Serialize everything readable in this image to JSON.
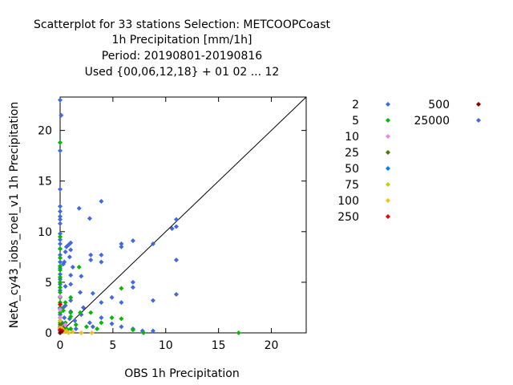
{
  "chart_data": {
    "type": "scatter",
    "title_lines": [
      "Scatterplot for   33 stations Selection: METCOOPCoast",
      "1h Precipitation [mm/1h]",
      "Period: 20190801-20190816",
      "Used {00,06,12,18} + 01 02 ... 12"
    ],
    "xlabel": "OBS 1h Precipitation",
    "ylabel": "NetA_cy43_iobs_roel_v1 1h Precipitation",
    "xlim": [
      0,
      23.3
    ],
    "ylim": [
      0,
      23.3
    ],
    "xticks": [
      "0",
      "5",
      "10",
      "15",
      "20"
    ],
    "yticks": [
      "0",
      "5",
      "10",
      "15",
      "20"
    ],
    "diagonal": true,
    "grid": false,
    "legend_position": "right",
    "legend": [
      {
        "label": "2",
        "color": "#4169e1"
      },
      {
        "label": "5",
        "color": "#00bb00"
      },
      {
        "label": "10",
        "color": "#ee82ee"
      },
      {
        "label": "25",
        "color": "#4a7a00"
      },
      {
        "label": "50",
        "color": "#0080ff"
      },
      {
        "label": "75",
        "color": "#cccc00"
      },
      {
        "label": "100",
        "color": "#f0c020"
      },
      {
        "label": "250",
        "color": "#ee0000"
      },
      {
        "label": "500",
        "color": "#8b0000"
      },
      {
        "label": "25000",
        "color": "#4169e1"
      }
    ],
    "series": [
      {
        "color": "#4169e1",
        "points": [
          [
            0,
            23.0
          ],
          [
            0.1,
            21.5
          ],
          [
            0,
            18.0
          ],
          [
            0,
            14.2
          ],
          [
            0,
            12.5
          ],
          [
            0,
            12.0
          ],
          [
            0,
            11.5
          ],
          [
            0,
            11.2
          ],
          [
            0,
            10.8
          ],
          [
            0,
            9.8
          ],
          [
            0,
            9.2
          ],
          [
            0,
            8.8
          ],
          [
            0,
            8.3
          ],
          [
            0,
            7.7
          ],
          [
            0,
            7.0
          ],
          [
            0,
            6.4
          ],
          [
            0,
            5.8
          ],
          [
            0,
            5.3
          ],
          [
            0,
            4.8
          ],
          [
            0,
            4.2
          ],
          [
            0,
            3.6
          ],
          [
            0,
            3.0
          ],
          [
            0,
            2.4
          ],
          [
            0,
            1.8
          ],
          [
            0,
            1.2
          ],
          [
            0,
            0.6
          ],
          [
            0,
            0.2
          ],
          [
            1.8,
            12.3
          ],
          [
            2.8,
            11.3
          ],
          [
            3.9,
            13.0
          ],
          [
            11.0,
            11.2
          ],
          [
            10.6,
            10.3
          ],
          [
            11.0,
            10.5
          ],
          [
            11.0,
            7.2
          ],
          [
            11.0,
            3.8
          ],
          [
            6.9,
            9.1
          ],
          [
            5.8,
            8.8
          ],
          [
            5.8,
            8.5
          ],
          [
            8.8,
            8.8
          ],
          [
            1.0,
            8.9
          ],
          [
            0.8,
            8.7
          ],
          [
            0.6,
            8.5
          ],
          [
            1.0,
            8.2
          ],
          [
            0.5,
            8.0
          ],
          [
            0.9,
            7.5
          ],
          [
            0.4,
            7.0
          ],
          [
            0.3,
            6.8
          ],
          [
            1.2,
            6.5
          ],
          [
            2.9,
            7.7
          ],
          [
            2.9,
            7.2
          ],
          [
            3.9,
            7.7
          ],
          [
            3.9,
            7.0
          ],
          [
            6.9,
            5.0
          ],
          [
            6.9,
            4.5
          ],
          [
            8.8,
            3.2
          ],
          [
            5.8,
            3.0
          ],
          [
            4.9,
            3.5
          ],
          [
            3.9,
            3.0
          ],
          [
            3.1,
            3.9
          ],
          [
            2.0,
            5.6
          ],
          [
            1.9,
            4.0
          ],
          [
            1.0,
            5.7
          ],
          [
            1.0,
            4.8
          ],
          [
            1.0,
            3.2
          ],
          [
            0.5,
            4.6
          ],
          [
            0.5,
            2.7
          ],
          [
            1.0,
            2.1
          ],
          [
            0.3,
            2.5
          ],
          [
            0.4,
            1.5
          ],
          [
            1.4,
            1.2
          ],
          [
            2.0,
            1.8
          ],
          [
            2.8,
            1.0
          ],
          [
            3.9,
            1.5
          ],
          [
            3.1,
            0.6
          ],
          [
            4.9,
            0.9
          ],
          [
            5.8,
            0.6
          ],
          [
            6.9,
            0.4
          ],
          [
            7.8,
            0.2
          ],
          [
            8.8,
            0.2
          ],
          [
            1.5,
            0.4
          ],
          [
            0.7,
            0.3
          ],
          [
            0.4,
            0.8
          ],
          [
            0.2,
            1.0
          ],
          [
            2.2,
            2.5
          ],
          [
            0.9,
            1.4
          ]
        ]
      },
      {
        "color": "#00bb00",
        "points": [
          [
            0,
            18.8
          ],
          [
            0,
            9.5
          ],
          [
            0,
            8.3
          ],
          [
            0,
            7.4
          ],
          [
            0,
            6.6
          ],
          [
            0,
            6.2
          ],
          [
            0,
            5.5
          ],
          [
            0,
            5.0
          ],
          [
            0,
            4.5
          ],
          [
            0,
            4.0
          ],
          [
            0,
            3.5
          ],
          [
            0,
            3.0
          ],
          [
            0,
            2.5
          ],
          [
            0,
            2.0
          ],
          [
            0,
            1.5
          ],
          [
            0,
            1.0
          ],
          [
            0,
            0.5
          ],
          [
            1.8,
            6.5
          ],
          [
            5.8,
            4.4
          ],
          [
            16.9,
            0.0
          ],
          [
            1.0,
            2.0
          ],
          [
            1.0,
            1.6
          ],
          [
            0.5,
            1.0
          ],
          [
            1.9,
            2.0
          ],
          [
            2.9,
            2.0
          ],
          [
            3.9,
            1.0
          ],
          [
            4.9,
            1.5
          ],
          [
            5.8,
            1.4
          ],
          [
            6.9,
            0.3
          ],
          [
            7.9,
            0.0
          ],
          [
            1.0,
            3.5
          ],
          [
            0.5,
            3.0
          ],
          [
            0.3,
            2.2
          ],
          [
            1.5,
            0.8
          ],
          [
            2.5,
            0.6
          ],
          [
            3.5,
            0.4
          ],
          [
            1.0,
            0.4
          ],
          [
            0.6,
            0.4
          ],
          [
            0.2,
            0.3
          ]
        ]
      },
      {
        "color": "#ee82ee",
        "points": [
          [
            0,
            3.6
          ],
          [
            0,
            2.3
          ],
          [
            0,
            1.5
          ],
          [
            0.2,
            0.6
          ],
          [
            0.5,
            0.8
          ]
        ]
      },
      {
        "color": "#4a7a00",
        "points": [
          [
            0,
            0.8
          ],
          [
            0,
            0.4
          ],
          [
            0.3,
            0.5
          ],
          [
            0.1,
            0.9
          ]
        ]
      },
      {
        "color": "#cccc00",
        "points": [
          [
            0,
            1.2
          ],
          [
            0.6,
            0.2
          ],
          [
            0.2,
            0.4
          ]
        ]
      },
      {
        "color": "#f0c020",
        "points": [
          [
            0,
            0.5
          ],
          [
            0.4,
            0.1
          ],
          [
            2.0,
            0.0
          ],
          [
            3.0,
            0.0
          ],
          [
            1.2,
            0.1
          ],
          [
            0.8,
            0.0
          ]
        ]
      },
      {
        "color": "#ee0000",
        "points": [
          [
            0,
            0.3
          ],
          [
            0,
            2.8
          ],
          [
            0.2,
            0.2
          ]
        ]
      },
      {
        "color": "#8b0000",
        "points": [
          [
            0,
            0.0
          ],
          [
            0.1,
            0.1
          ]
        ]
      }
    ]
  }
}
